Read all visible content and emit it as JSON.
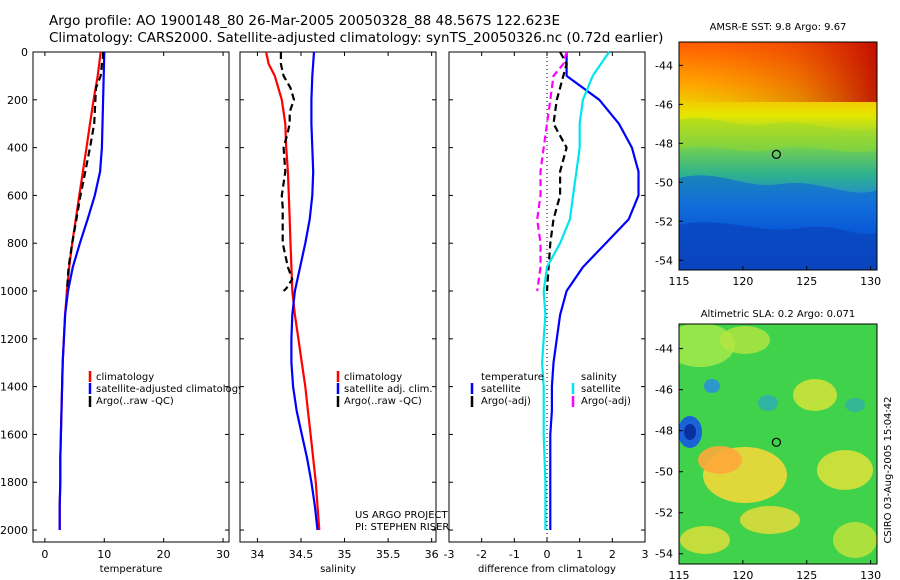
{
  "header": {
    "line1": "Argo profile: AO 1900148_80 26-Mar-2005 20050328_88 48.567S 122.623E",
    "line2": "Climatology: CARS2000. Satellite-adjusted climatology: synTS_20050326.nc (0.72d earlier)"
  },
  "colors": {
    "climatology": "#ff0000",
    "satellite": "#0000ff",
    "argo": "#000000",
    "temperature_satellite": "#0000ff",
    "salinity_satellite": "#00e5ee",
    "salinity_argo": "#ff00ff"
  },
  "footer_note": "CSIRO 03-Aug-2005 15:04:42",
  "chart_data": [
    {
      "type": "line",
      "id": "temperature",
      "xlabel": "temperature",
      "ylabel": "",
      "xlim": [
        -2,
        31
      ],
      "ylim": [
        2050,
        0
      ],
      "xticks": [
        0,
        10,
        20,
        30
      ],
      "yticks": [
        0,
        200,
        400,
        600,
        800,
        1000,
        1200,
        1400,
        1600,
        1800,
        2000
      ],
      "legend": [
        "climatology",
        "satellite-adjusted climatology",
        "Argo(..raw -QC)"
      ],
      "series": [
        {
          "name": "climatology",
          "color": "#ff0000",
          "dash": false,
          "points": [
            [
              9.4,
              0
            ],
            [
              9.3,
              20
            ],
            [
              8.9,
              100
            ],
            [
              8.2,
              200
            ],
            [
              7.6,
              300
            ],
            [
              7.0,
              400
            ],
            [
              6.4,
              500
            ],
            [
              5.8,
              600
            ],
            [
              5.2,
              700
            ],
            [
              4.6,
              800
            ],
            [
              4.1,
              900
            ],
            [
              3.7,
              1000
            ],
            [
              3.4,
              1100
            ],
            [
              3.2,
              1200
            ],
            [
              3.0,
              1300
            ],
            [
              2.9,
              1400
            ],
            [
              2.8,
              1500
            ],
            [
              2.7,
              1600
            ],
            [
              2.6,
              1700
            ],
            [
              2.6,
              1800
            ],
            [
              2.5,
              1900
            ],
            [
              2.5,
              2000
            ]
          ]
        },
        {
          "name": "satellite-adjusted climatology",
          "color": "#0000ff",
          "dash": false,
          "points": [
            [
              10.0,
              0
            ],
            [
              9.9,
              100
            ],
            [
              9.8,
              200
            ],
            [
              9.7,
              300
            ],
            [
              9.6,
              400
            ],
            [
              9.3,
              500
            ],
            [
              8.4,
              600
            ],
            [
              7.2,
              700
            ],
            [
              5.9,
              800
            ],
            [
              4.7,
              900
            ],
            [
              3.9,
              1000
            ],
            [
              3.4,
              1100
            ],
            [
              3.2,
              1200
            ],
            [
              3.0,
              1300
            ],
            [
              2.9,
              1400
            ],
            [
              2.8,
              1500
            ],
            [
              2.7,
              1600
            ],
            [
              2.6,
              1700
            ],
            [
              2.6,
              1800
            ],
            [
              2.5,
              1900
            ],
            [
              2.5,
              2000
            ]
          ]
        },
        {
          "name": "Argo(..raw -QC)",
          "color": "#000000",
          "dash": true,
          "points": [
            [
              9.8,
              0
            ],
            [
              9.8,
              20
            ],
            [
              9.6,
              50
            ],
            [
              9.4,
              100
            ],
            [
              8.6,
              150
            ],
            [
              8.5,
              200
            ],
            [
              8.3,
              300
            ],
            [
              7.6,
              400
            ],
            [
              6.8,
              500
            ],
            [
              6.0,
              600
            ],
            [
              5.3,
              700
            ],
            [
              4.6,
              800
            ],
            [
              4.0,
              900
            ],
            [
              3.7,
              1000
            ]
          ]
        }
      ]
    },
    {
      "type": "line",
      "id": "salinity",
      "xlabel": "salinity",
      "ylabel": "",
      "xlim": [
        33.8,
        36.05
      ],
      "ylim": [
        2050,
        0
      ],
      "xticks": [
        34,
        34.5,
        35,
        35.5,
        36
      ],
      "legend": [
        "climatology",
        "satellite adj. clim.",
        "Argo(..raw -QC)"
      ],
      "note": [
        "US ARGO PROJECT",
        "PI: STEPHEN RISER"
      ],
      "series": [
        {
          "name": "climatology",
          "color": "#ff0000",
          "dash": false,
          "points": [
            [
              34.1,
              0
            ],
            [
              34.13,
              50
            ],
            [
              34.2,
              100
            ],
            [
              34.28,
              200
            ],
            [
              34.32,
              300
            ],
            [
              34.33,
              400
            ],
            [
              34.35,
              500
            ],
            [
              34.36,
              600
            ],
            [
              34.37,
              700
            ],
            [
              34.38,
              800
            ],
            [
              34.39,
              900
            ],
            [
              34.4,
              1000
            ],
            [
              34.43,
              1100
            ],
            [
              34.47,
              1200
            ],
            [
              34.51,
              1300
            ],
            [
              34.55,
              1400
            ],
            [
              34.58,
              1500
            ],
            [
              34.61,
              1600
            ],
            [
              34.64,
              1700
            ],
            [
              34.67,
              1800
            ],
            [
              34.69,
              1900
            ],
            [
              34.71,
              2000
            ]
          ]
        },
        {
          "name": "satellite adj. clim.",
          "color": "#0000ff",
          "dash": false,
          "points": [
            [
              34.65,
              0
            ],
            [
              34.63,
              100
            ],
            [
              34.62,
              200
            ],
            [
              34.62,
              300
            ],
            [
              34.63,
              400
            ],
            [
              34.64,
              500
            ],
            [
              34.63,
              600
            ],
            [
              34.6,
              700
            ],
            [
              34.55,
              800
            ],
            [
              34.49,
              900
            ],
            [
              34.43,
              1000
            ],
            [
              34.4,
              1100
            ],
            [
              34.39,
              1200
            ],
            [
              34.39,
              1300
            ],
            [
              34.41,
              1400
            ],
            [
              34.45,
              1500
            ],
            [
              34.51,
              1600
            ],
            [
              34.57,
              1700
            ],
            [
              34.62,
              1800
            ],
            [
              34.66,
              1900
            ],
            [
              34.69,
              2000
            ]
          ]
        },
        {
          "name": "Argo(..raw -QC)",
          "color": "#000000",
          "dash": true,
          "points": [
            [
              34.27,
              0
            ],
            [
              34.27,
              50
            ],
            [
              34.3,
              100
            ],
            [
              34.38,
              150
            ],
            [
              34.42,
              200
            ],
            [
              34.37,
              250
            ],
            [
              34.37,
              300
            ],
            [
              34.34,
              350
            ],
            [
              34.3,
              400
            ],
            [
              34.32,
              500
            ],
            [
              34.28,
              600
            ],
            [
              34.29,
              650
            ],
            [
              34.29,
              700
            ],
            [
              34.29,
              800
            ],
            [
              34.35,
              900
            ],
            [
              34.4,
              950
            ],
            [
              34.33,
              990
            ],
            [
              34.3,
              1000
            ]
          ]
        }
      ]
    },
    {
      "type": "line",
      "id": "difference",
      "xlabel": "difference from climatology",
      "ylabel": "",
      "xlim": [
        -3,
        3
      ],
      "ylim": [
        2050,
        0
      ],
      "xticks": [
        -3,
        -2,
        -1,
        0,
        1,
        2,
        3
      ],
      "legend_left": [
        "temperature",
        "satellite",
        "Argo(-adj)"
      ],
      "legend_right": [
        "salinity",
        "satellite",
        "Argo(-adj)"
      ],
      "series": [
        {
          "name": "temperature satellite",
          "color": "#0000ff",
          "dash": false,
          "points": [
            [
              0.6,
              0
            ],
            [
              0.6,
              100
            ],
            [
              1.6,
              200
            ],
            [
              2.2,
              300
            ],
            [
              2.6,
              400
            ],
            [
              2.8,
              500
            ],
            [
              2.8,
              600
            ],
            [
              2.5,
              700
            ],
            [
              1.8,
              800
            ],
            [
              1.1,
              900
            ],
            [
              0.6,
              1000
            ],
            [
              0.4,
              1100
            ],
            [
              0.3,
              1200
            ],
            [
              0.2,
              1300
            ],
            [
              0.15,
              1400
            ],
            [
              0.15,
              1500
            ],
            [
              0.1,
              1600
            ],
            [
              0.1,
              1800
            ],
            [
              0.1,
              2000
            ]
          ]
        },
        {
          "name": "temperature Argo(-adj)",
          "color": "#000000",
          "dash": true,
          "points": [
            [
              0.4,
              0
            ],
            [
              0.6,
              50
            ],
            [
              0.5,
              100
            ],
            [
              0.4,
              150
            ],
            [
              0.3,
              200
            ],
            [
              0.2,
              300
            ],
            [
              0.6,
              400
            ],
            [
              0.4,
              500
            ],
            [
              0.4,
              600
            ],
            [
              0.2,
              700
            ],
            [
              0.1,
              800
            ],
            [
              0.05,
              900
            ],
            [
              0.0,
              1000
            ]
          ]
        },
        {
          "name": "salinity satellite",
          "color": "#00e5ee",
          "dash": false,
          "points": [
            [
              1.9,
              0
            ],
            [
              1.4,
              100
            ],
            [
              1.1,
              200
            ],
            [
              1.0,
              300
            ],
            [
              1.0,
              400
            ],
            [
              0.9,
              500
            ],
            [
              0.8,
              600
            ],
            [
              0.7,
              700
            ],
            [
              0.4,
              800
            ],
            [
              0.0,
              900
            ],
            [
              -0.1,
              1000
            ],
            [
              -0.05,
              1100
            ],
            [
              -0.1,
              1200
            ],
            [
              -0.15,
              1300
            ],
            [
              -0.1,
              1400
            ],
            [
              -0.1,
              1500
            ],
            [
              -0.1,
              1600
            ],
            [
              -0.05,
              1800
            ],
            [
              -0.05,
              2000
            ]
          ]
        },
        {
          "name": "salinity Argo(-adj)",
          "color": "#ff00ff",
          "dash": true,
          "points": [
            [
              0.6,
              0
            ],
            [
              0.5,
              50
            ],
            [
              0.2,
              100
            ],
            [
              0.1,
              200
            ],
            [
              0.0,
              300
            ],
            [
              -0.1,
              400
            ],
            [
              -0.2,
              500
            ],
            [
              -0.2,
              600
            ],
            [
              -0.3,
              700
            ],
            [
              -0.2,
              800
            ],
            [
              -0.2,
              900
            ],
            [
              -0.3,
              1000
            ]
          ]
        }
      ]
    },
    {
      "type": "heatmap",
      "id": "sst_map",
      "title": "AMSR-E SST: 9.8 Argo: 9.67",
      "xlim": [
        115,
        130.5
      ],
      "ylim": [
        -54.5,
        -42.8
      ],
      "xticks": [
        115,
        120,
        125,
        130
      ],
      "yticks": [
        -44,
        -46,
        -48,
        -50,
        -52,
        -54
      ],
      "marker": [
        122.623,
        -48.567
      ]
    },
    {
      "type": "heatmap",
      "id": "sla_map",
      "title": "Altimetric SLA: 0.2 Argo: 0.071",
      "xlim": [
        115,
        130.5
      ],
      "ylim": [
        -54.5,
        -42.8
      ],
      "xticks": [
        115,
        120,
        125,
        130
      ],
      "yticks": [
        -44,
        -46,
        -48,
        -50,
        -52,
        -54
      ],
      "marker": [
        122.623,
        -48.567
      ]
    }
  ]
}
